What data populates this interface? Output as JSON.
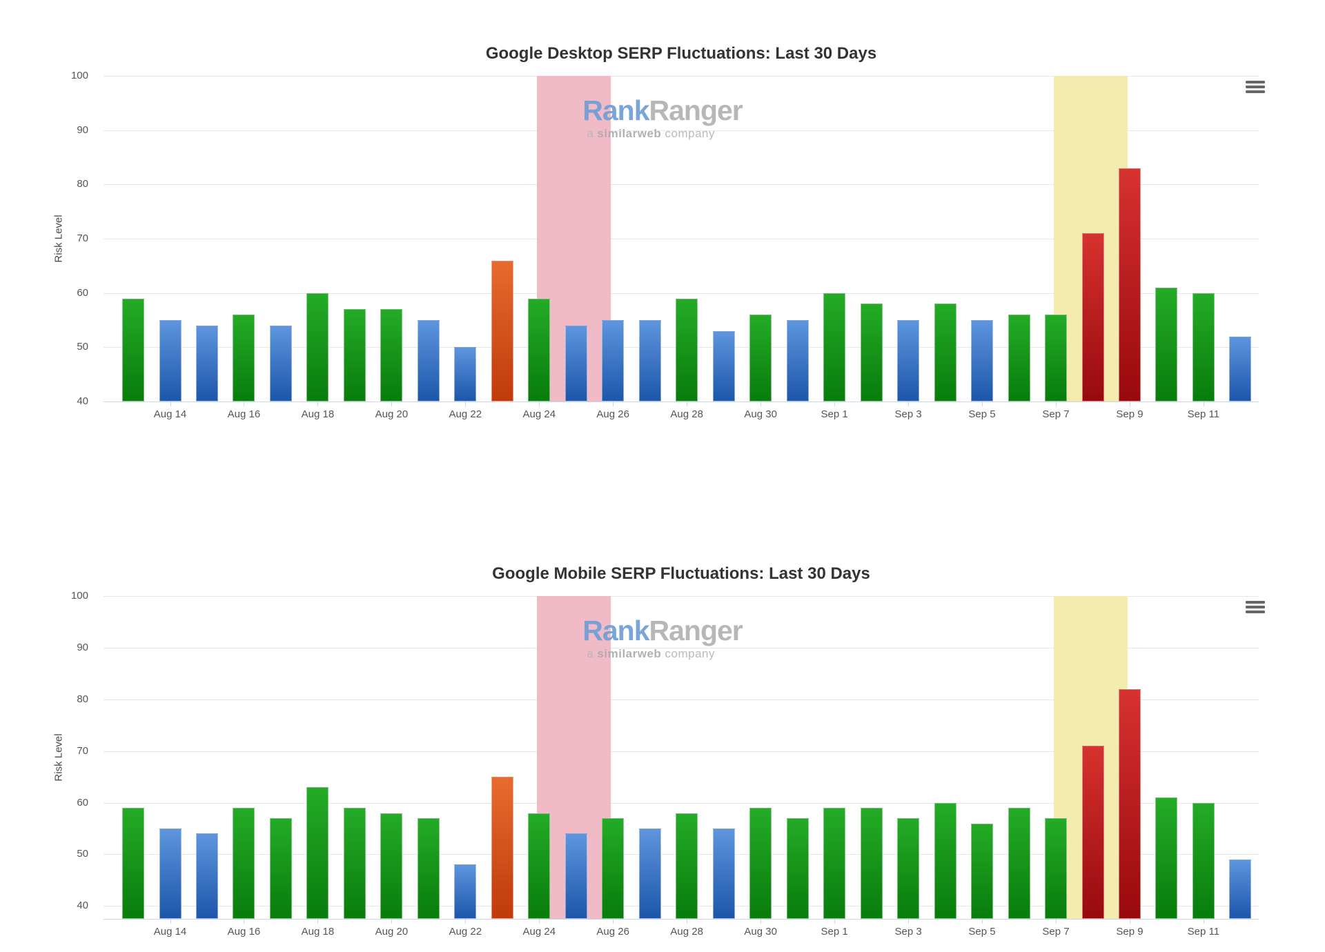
{
  "page": {
    "background": "#ffffff"
  },
  "watermark": {
    "brand_part1": "Rank",
    "brand_part2": "Ranger",
    "tagline_prefix": "a ",
    "tagline_bold": "similarweb",
    "tagline_suffix": " company"
  },
  "colors": {
    "bars": {
      "green": {
        "top": "#24ab26",
        "bottom": "#087c0c"
      },
      "blue": {
        "top": "#5e95de",
        "bottom": "#1d56aa"
      },
      "orange": {
        "top": "#e76b2f",
        "bottom": "#bf3a0b"
      },
      "red": {
        "top": "#d63230",
        "bottom": "#99090c"
      }
    },
    "bands": {
      "negative": "#f0bac6",
      "positive": "#f3ecae"
    },
    "grid": "#e7e7e7",
    "axis": "#ccd6eb",
    "title_text": "#333333",
    "tick_text": "#555555",
    "watermark_blue": "#6f9ed6",
    "watermark_gray": "#b1b1b3",
    "menu_icon": "#676767"
  },
  "chart_data": [
    {
      "type": "bar",
      "title": "Google Desktop SERP Fluctuations: Last 30 Days",
      "ylabel": "Risk Level",
      "ylim": [
        40,
        100
      ],
      "y_ticks": [
        100,
        90,
        80,
        70,
        60,
        50,
        40
      ],
      "grid": true,
      "x": [
        "Aug 13",
        "Aug 14",
        "Aug 15",
        "Aug 16",
        "Aug 17",
        "Aug 18",
        "Aug 19",
        "Aug 20",
        "Aug 21",
        "Aug 22",
        "Aug 23",
        "Aug 24",
        "Aug 25",
        "Aug 26",
        "Aug 27",
        "Aug 28",
        "Aug 29",
        "Aug 30",
        "Aug 31",
        "Sep 1",
        "Sep 2",
        "Sep 3",
        "Sep 4",
        "Sep 5",
        "Sep 6",
        "Sep 7",
        "Sep 8",
        "Sep 9",
        "Sep 10",
        "Sep 11",
        "Sep 12"
      ],
      "values": [
        59,
        55,
        54,
        56,
        54,
        60,
        57,
        57,
        55,
        50,
        66,
        59,
        54,
        55,
        55,
        59,
        53,
        56,
        55,
        60,
        58,
        55,
        58,
        55,
        56,
        56,
        71,
        83,
        61,
        60,
        52
      ],
      "bar_colors": [
        "green",
        "blue",
        "blue",
        "green",
        "blue",
        "green",
        "green",
        "green",
        "blue",
        "blue",
        "orange",
        "green",
        "blue",
        "blue",
        "blue",
        "green",
        "blue",
        "green",
        "blue",
        "green",
        "green",
        "blue",
        "green",
        "blue",
        "green",
        "green",
        "red",
        "red",
        "green",
        "green",
        "blue"
      ],
      "x_tick_labels": [
        "Aug 14",
        "Aug 16",
        "Aug 18",
        "Aug 20",
        "Aug 22",
        "Aug 24",
        "Aug 26",
        "Aug 28",
        "Aug 30",
        "Sep 1",
        "Sep 3",
        "Sep 5",
        "Sep 7",
        "Sep 9",
        "Sep 11"
      ],
      "bands": [
        {
          "from_date": "Aug 24",
          "to_date": "Aug 26",
          "type": "negative"
        },
        {
          "from_date": "Sep 7",
          "to_date": "Sep 9",
          "type": "positive"
        }
      ]
    },
    {
      "type": "bar",
      "title": "Google Mobile SERP Fluctuations: Last 30 Days",
      "ylabel": "Risk Level",
      "ylim": [
        40,
        100
      ],
      "y_ticks": [
        100,
        90,
        80,
        70,
        60,
        50,
        40
      ],
      "grid": true,
      "x": [
        "Aug 13",
        "Aug 14",
        "Aug 15",
        "Aug 16",
        "Aug 17",
        "Aug 18",
        "Aug 19",
        "Aug 20",
        "Aug 21",
        "Aug 22",
        "Aug 23",
        "Aug 24",
        "Aug 25",
        "Aug 26",
        "Aug 27",
        "Aug 28",
        "Aug 29",
        "Aug 30",
        "Aug 31",
        "Sep 1",
        "Sep 2",
        "Sep 3",
        "Sep 4",
        "Sep 5",
        "Sep 6",
        "Sep 7",
        "Sep 8",
        "Sep 9",
        "Sep 10",
        "Sep 11",
        "Sep 12"
      ],
      "values": [
        59,
        55,
        54,
        59,
        57,
        63,
        59,
        58,
        57,
        48,
        65,
        58,
        54,
        57,
        55,
        58,
        55,
        59,
        57,
        59,
        59,
        57,
        60,
        56,
        59,
        57,
        71,
        82,
        61,
        60,
        49
      ],
      "bar_colors": [
        "green",
        "blue",
        "blue",
        "green",
        "green",
        "green",
        "green",
        "green",
        "green",
        "blue",
        "orange",
        "green",
        "blue",
        "green",
        "blue",
        "green",
        "blue",
        "green",
        "green",
        "green",
        "green",
        "green",
        "green",
        "green",
        "green",
        "green",
        "red",
        "red",
        "green",
        "green",
        "blue"
      ],
      "x_tick_labels": [
        "Aug 14",
        "Aug 16",
        "Aug 18",
        "Aug 20",
        "Aug 22",
        "Aug 24",
        "Aug 26",
        "Aug 28",
        "Aug 30",
        "Sep 1",
        "Sep 3",
        "Sep 5",
        "Sep 7",
        "Sep 9",
        "Sep 11"
      ],
      "bands": [
        {
          "from_date": "Aug 24",
          "to_date": "Aug 26",
          "type": "negative"
        },
        {
          "from_date": "Sep 7",
          "to_date": "Sep 9",
          "type": "positive"
        }
      ]
    }
  ]
}
